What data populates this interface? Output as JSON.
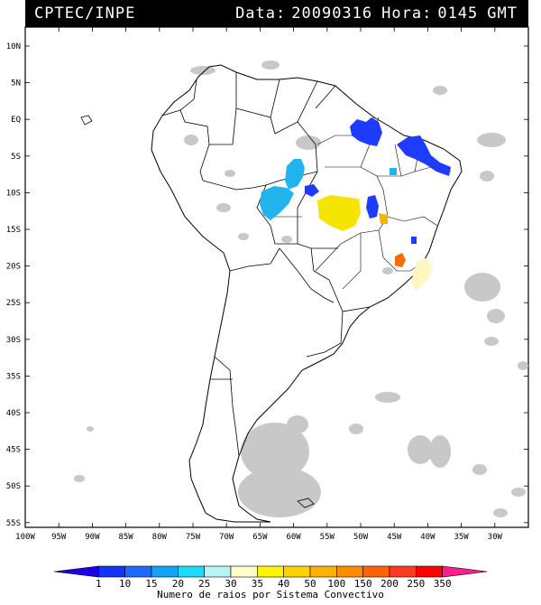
{
  "header": {
    "source": "CPTEC/INPE",
    "date_label": "Data:",
    "date_value": "20090316",
    "time_label": "Hora:",
    "time_value": "0145",
    "time_zone": "GMT"
  },
  "map": {
    "lon_labels": [
      "100W",
      "95W",
      "90W",
      "85W",
      "80W",
      "75W",
      "70W",
      "65W",
      "60W",
      "55W",
      "50W",
      "45W",
      "40W",
      "35W",
      "30W"
    ],
    "lat_labels": [
      "10N",
      "5N",
      "EQ",
      "5S",
      "10S",
      "15S",
      "20S",
      "25S",
      "30S",
      "35S",
      "40S",
      "45S",
      "50S",
      "55S"
    ],
    "storms": [
      {
        "region": "north-coast",
        "color": "#1e3cff"
      },
      {
        "region": "northeast",
        "color": "#1e3cff"
      },
      {
        "region": "amazon-1",
        "color": "#22b4ee"
      },
      {
        "region": "amazon-2",
        "color": "#22b4ee"
      },
      {
        "region": "central",
        "color": "#f5e400"
      },
      {
        "region": "central-east",
        "color": "#f5b400"
      },
      {
        "region": "minas",
        "color": "#ff6a00"
      },
      {
        "region": "coast-se",
        "color": "#fff6c0"
      }
    ]
  },
  "legend": {
    "title": "Numero de raios por Sistema Convectivo",
    "ticks": [
      "1",
      "10",
      "15",
      "20",
      "25",
      "30",
      "35",
      "40",
      "50",
      "100",
      "150",
      "200",
      "250",
      "350"
    ],
    "colors": [
      "#1a00e6",
      "#0f35ff",
      "#1e6bff",
      "#16a2f5",
      "#20d8f7",
      "#b8f4f4",
      "#ffffc8",
      "#fff400",
      "#ffd200",
      "#ffb000",
      "#ff8c00",
      "#ff6400",
      "#ff3a20",
      "#ff0000",
      "#ff1e90"
    ]
  }
}
